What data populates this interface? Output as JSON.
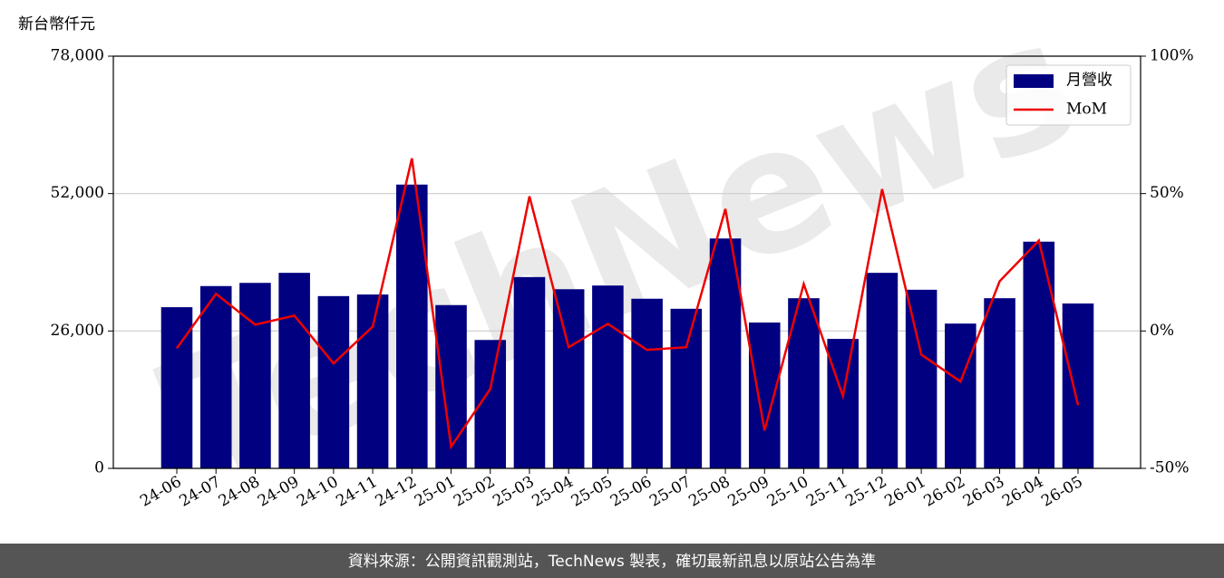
{
  "chart_data": {
    "type": "bar_line",
    "y_label": "新台幣仟元",
    "watermark": "TechNews",
    "footer": "資料來源：公開資訊觀測站，TechNews 製表，確切最新訊息以原站公告為準",
    "categories": [
      "24-06",
      "24-07",
      "24-08",
      "24-09",
      "24-10",
      "24-11",
      "24-12",
      "25-01",
      "25-02",
      "25-03",
      "25-04",
      "25-05",
      "25-06",
      "25-07",
      "25-08",
      "25-09",
      "25-10",
      "25-11",
      "25-12",
      "26-01",
      "26-02",
      "26-03",
      "26-04",
      "26-05"
    ],
    "series": [
      {
        "name": "月營收",
        "type": "bar",
        "color": "#000080",
        "values": [
          30500,
          34500,
          35100,
          37000,
          32600,
          32900,
          53700,
          30900,
          24300,
          36200,
          33900,
          34600,
          32100,
          30200,
          43500,
          27600,
          32200,
          24500,
          37000,
          33800,
          27400,
          32200,
          42900,
          31200
        ]
      },
      {
        "name": "MoM",
        "type": "line",
        "axis": "y2",
        "color": "#ee0000",
        "values": [
          -6.3,
          13.5,
          2.3,
          5.6,
          -11.8,
          1.6,
          62.8,
          -42.1,
          -21.1,
          49.0,
          -5.9,
          2.6,
          -6.9,
          -5.9,
          44.4,
          -36.2,
          17.1,
          -23.7,
          51.6,
          -8.6,
          -18.4,
          18.1,
          32.9,
          -27.0
        ]
      }
    ],
    "ylim": [
      0,
      78000
    ],
    "yticks": [
      0,
      {
        "value": 26000,
        "label": "26,000"
      },
      {
        "value": 52000,
        "label": "52,000"
      },
      {
        "value": 78000,
        "label": "78,000"
      }
    ],
    "y2lim": [
      -50,
      100
    ],
    "y2ticks": [
      {
        "value": -50,
        "label": "-50%"
      },
      {
        "value": 0,
        "label": "0%"
      },
      {
        "value": 50,
        "label": "50%"
      },
      {
        "value": 100,
        "label": "100%"
      }
    ],
    "grid": true,
    "legend": "upper right"
  }
}
